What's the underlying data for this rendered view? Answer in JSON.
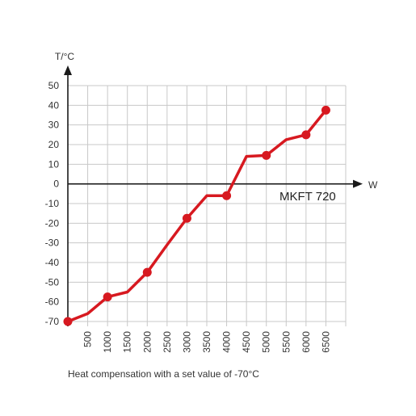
{
  "chart_data": {
    "type": "line",
    "caption": "Heat compensation with a set value of -70°C",
    "xlabel": "W",
    "ylabel": "T/°C",
    "annotation": "MKFT 720",
    "xlim": [
      0,
      7000
    ],
    "ylim": [
      -70,
      50
    ],
    "x_ticks": [
      500,
      1000,
      1500,
      2000,
      2500,
      3000,
      3500,
      4000,
      4500,
      5000,
      5500,
      6000,
      6500
    ],
    "x_tick_labels": [
      "500",
      "1000",
      "1500",
      "2000",
      "2500",
      "3000",
      "3500",
      "4000",
      "4500",
      "5000",
      "5500",
      "6000",
      "6500"
    ],
    "y_ticks": [
      -70,
      -60,
      -50,
      -40,
      -30,
      -20,
      -10,
      0,
      10,
      20,
      30,
      40,
      50
    ],
    "y_tick_labels": [
      "-70",
      "-60",
      "-50",
      "-40",
      "-30",
      "-20",
      "-10",
      "0",
      "10",
      "20",
      "30",
      "40",
      "50"
    ],
    "grid": true,
    "series": [
      {
        "color": "#d71920",
        "line": [
          [
            0,
            -70
          ],
          [
            500,
            -66
          ],
          [
            1000,
            -57.5
          ],
          [
            1500,
            -55
          ],
          [
            2000,
            -45
          ],
          [
            2500,
            -31
          ],
          [
            3000,
            -17.5
          ],
          [
            3500,
            -6
          ],
          [
            4000,
            -6
          ],
          [
            4500,
            14
          ],
          [
            5000,
            14.5
          ],
          [
            5500,
            22.5
          ],
          [
            6000,
            25
          ],
          [
            6500,
            37.5
          ]
        ],
        "markers": [
          [
            0,
            -70
          ],
          [
            1000,
            -57.5
          ],
          [
            2000,
            -45
          ],
          [
            3000,
            -17.5
          ],
          [
            4000,
            -6
          ],
          [
            5000,
            14.5
          ],
          [
            6000,
            25
          ],
          [
            6500,
            37.5
          ]
        ]
      }
    ]
  }
}
